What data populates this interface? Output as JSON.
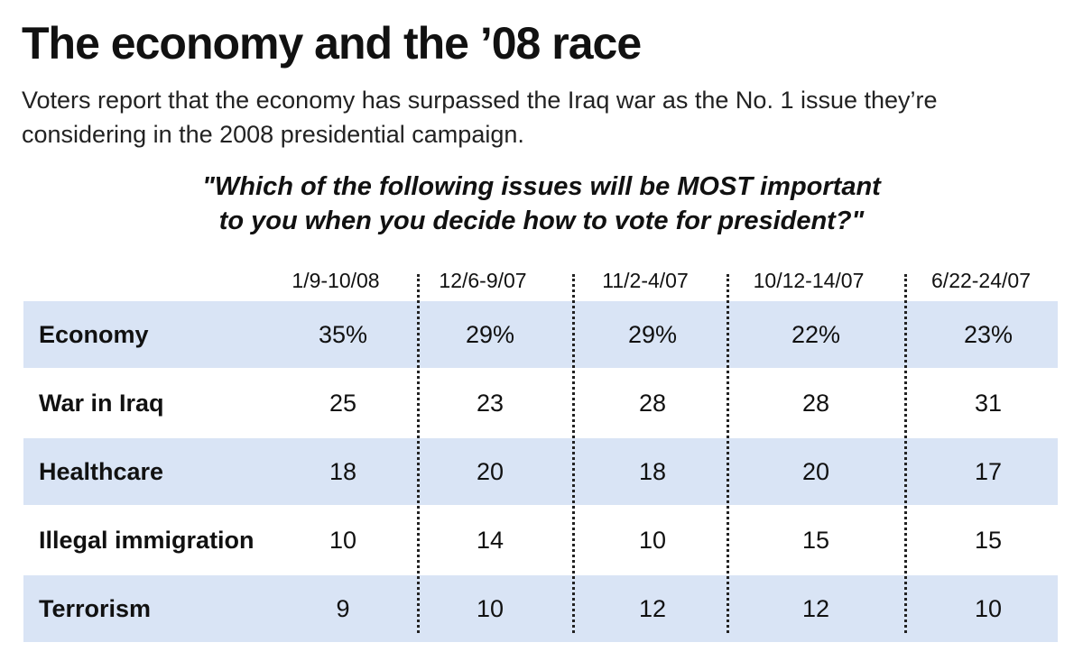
{
  "title": "The economy and the ’08 race",
  "subtitle": "Voters report that the economy has surpassed the Iraq war as the No. 1 issue they’re considering in the 2008 presidential campaign.",
  "question_line1": "\"Which of the following issues will be MOST important",
  "question_line2": "to you when you decide how to vote for president?\"",
  "colors": {
    "shaded_row": "#d9e4f5",
    "text": "#111111"
  },
  "chart_data": {
    "type": "table",
    "columns": [
      "1/9-10/08",
      "12/6-9/07",
      "11/2-4/07",
      "10/12-14/07",
      "6/22-24/07"
    ],
    "rows": [
      {
        "label": "Economy",
        "values": [
          "35%",
          "29%",
          "29%",
          "22%",
          "23%"
        ],
        "shaded": true
      },
      {
        "label": "War in Iraq",
        "values": [
          "25",
          "23",
          "28",
          "28",
          "31"
        ],
        "shaded": false
      },
      {
        "label": "Healthcare",
        "values": [
          "18",
          "20",
          "18",
          "20",
          "17"
        ],
        "shaded": true
      },
      {
        "label": "Illegal immigration",
        "values": [
          "10",
          "14",
          "10",
          "15",
          "15"
        ],
        "shaded": false
      },
      {
        "label": "Terrorism",
        "values": [
          "9",
          "10",
          "12",
          "12",
          "10"
        ],
        "shaded": true
      }
    ]
  }
}
